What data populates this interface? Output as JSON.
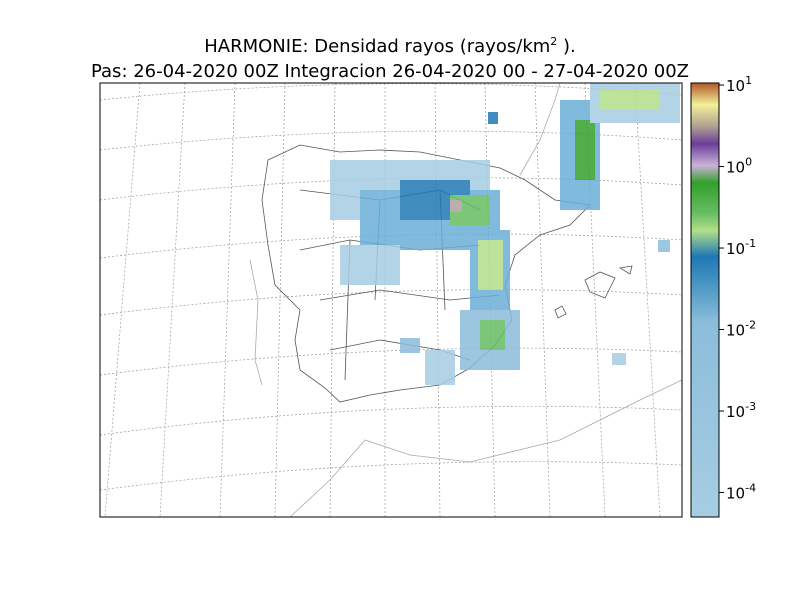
{
  "header": {
    "title": {
      "text": "HARMONIE: Densidad rayos  (rayos/km",
      "sup": "2",
      "tail": " )."
    },
    "subtitle": "Pas: 26-04-2020 00Z Integracion 26-04-2020 00 - 27-04-2020 00Z"
  },
  "colorbar": {
    "scale": "log",
    "lim": [
      5e-05,
      10.6
    ],
    "ticks": [
      {
        "value": 10,
        "base": "10",
        "exp": "1"
      },
      {
        "value": 1,
        "base": "10",
        "exp": "0"
      },
      {
        "value": 0.1,
        "base": "10",
        "exp": "-1"
      },
      {
        "value": 0.01,
        "base": "10",
        "exp": "-2"
      },
      {
        "value": 0.001,
        "base": "10",
        "exp": "-3"
      },
      {
        "value": 0.0001,
        "base": "10",
        "exp": "-4"
      }
    ]
  }
}
